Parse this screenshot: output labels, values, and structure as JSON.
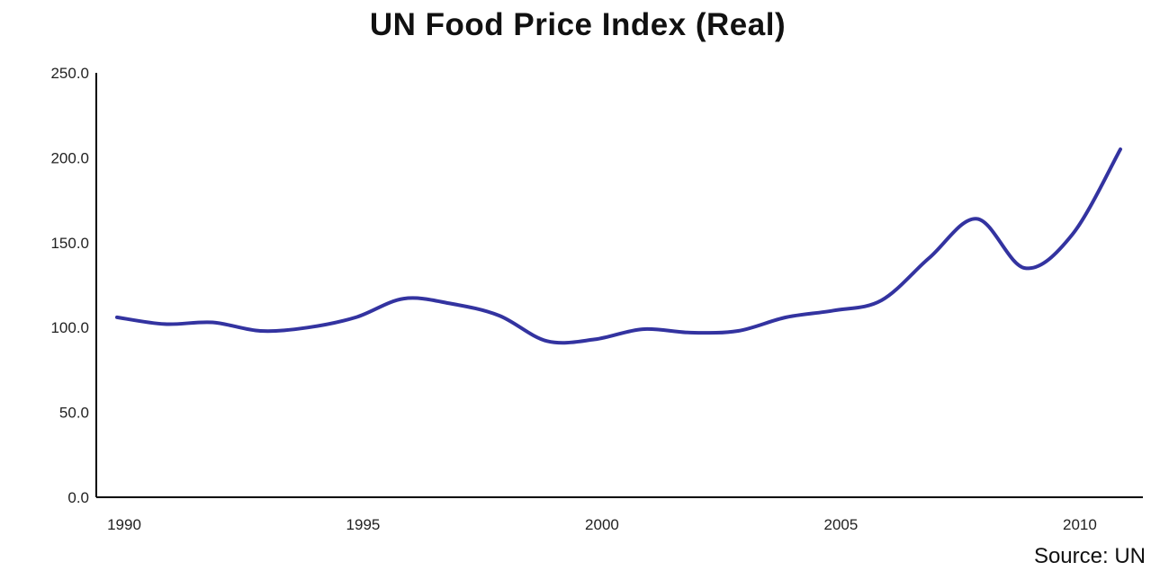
{
  "chart_data": {
    "type": "line",
    "title": "UN Food Price Index (Real)",
    "source": "Source: UN",
    "xlabel": "",
    "ylabel": "",
    "xlim": [
      1990,
      2011
    ],
    "ylim": [
      0,
      250
    ],
    "y_ticks": [
      0,
      50,
      100,
      150,
      200,
      250
    ],
    "y_tick_labels": [
      "0.0",
      "50.0",
      "100.0",
      "150.0",
      "200.0",
      "250.0"
    ],
    "x_ticks": [
      1990,
      1995,
      2000,
      2005,
      2010
    ],
    "x_tick_labels": [
      "1990",
      "1995",
      "2000",
      "2005",
      "2010"
    ],
    "grid": false,
    "legend": "none",
    "line_color": "#3333a0",
    "series": [
      {
        "x": [
          1990,
          1991,
          1992,
          1993,
          1994,
          1995,
          1996,
          1997,
          1998,
          1999,
          2000,
          2001,
          2002,
          2003,
          2004,
          2005,
          2006,
          2007,
          2008,
          2009,
          2010,
          2011
        ],
        "values": [
          106,
          102,
          103,
          98,
          100,
          106,
          117,
          114,
          107,
          92,
          93,
          99,
          97,
          98,
          106,
          110,
          116,
          141,
          164,
          135,
          155,
          205
        ]
      }
    ]
  }
}
